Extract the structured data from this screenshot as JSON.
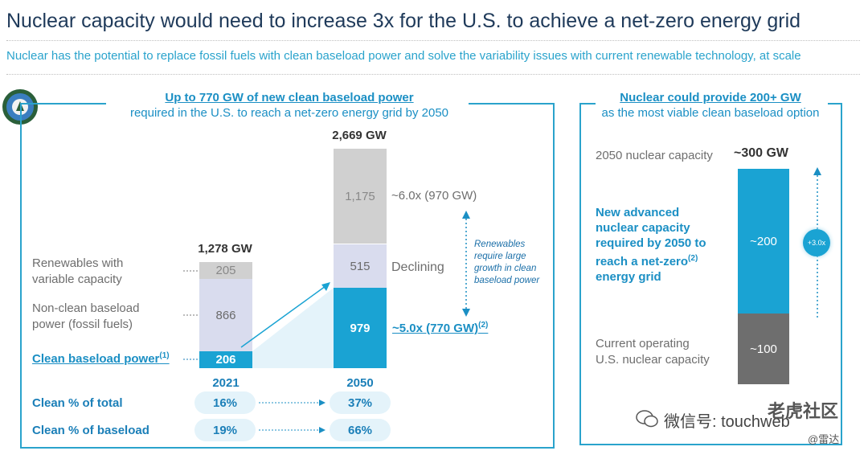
{
  "title": "Nuclear capacity would need to increase 3x for the U.S. to achieve a net-zero energy grid",
  "subtitle": "Nuclear has the potential to replace fossil fuels with clean baseload power and solve the variability issues with current renewable technology, at scale",
  "colors": {
    "clean": "#1aa3d3",
    "nonclean": "#d9dcee",
    "renewables": "#d0d0d0",
    "operating": "#6e6e6e",
    "accent": "#1b8fc4"
  },
  "chart_data": [
    {
      "type": "bar",
      "stacked": true,
      "title": "Up to 770 GW of new clean baseload power",
      "subtitle": "required in the U.S. to reach a net-zero energy grid by 2050",
      "categories": [
        "2021",
        "2050"
      ],
      "totals": [
        "1,278 GW",
        "2,669 GW"
      ],
      "series": [
        {
          "name": "Clean baseload power",
          "sup": "(1)",
          "values": [
            206,
            979
          ],
          "labels": [
            "206",
            "979"
          ]
        },
        {
          "name": "Non-clean baseload power (fossil fuels)",
          "values": [
            866,
            515
          ],
          "labels": [
            "866",
            "515"
          ]
        },
        {
          "name": "Renewables with variable capacity",
          "values": [
            205,
            1175
          ],
          "labels": [
            "205",
            "1,175"
          ]
        }
      ],
      "annotations": {
        "renewables_growth": "~6.0x (970 GW)",
        "nonclean_change": "Declining",
        "clean_growth": "~5.0x (770 GW)",
        "clean_growth_sup": "(2)",
        "renewables_note": [
          "Renewables",
          "require large",
          "growth in clean",
          "baseload power"
        ]
      },
      "table": {
        "rows": [
          {
            "label": "Clean % of total",
            "values": [
              "16%",
              "37%"
            ]
          },
          {
            "label": "Clean % of baseload",
            "values": [
              "19%",
              "66%"
            ]
          }
        ]
      }
    },
    {
      "type": "bar",
      "stacked": true,
      "title": "Nuclear could provide 200+ GW",
      "subtitle": "as the most viable clean baseload option",
      "total_label": "2050 nuclear capacity",
      "total_value": "~300 GW",
      "series": [
        {
          "name": "Current operating U.S. nuclear capacity",
          "label_lines": [
            "Current operating",
            "U.S. nuclear capacity"
          ],
          "value": 100,
          "value_label": "~100"
        },
        {
          "name": "New advanced nuclear capacity required by 2050 to reach a net-zero energy grid",
          "label_lines": [
            "New advanced",
            "nuclear capacity",
            "required by 2050 to",
            "reach a net-zero",
            "energy grid"
          ],
          "label_sup": "(2)",
          "value": 200,
          "value_label": "~200"
        }
      ],
      "multiplier": "+3.0x"
    }
  ],
  "watermark": {
    "line1": "微信号: touchweb",
    "line2": "老虎社区",
    "line3": "@雷达"
  }
}
